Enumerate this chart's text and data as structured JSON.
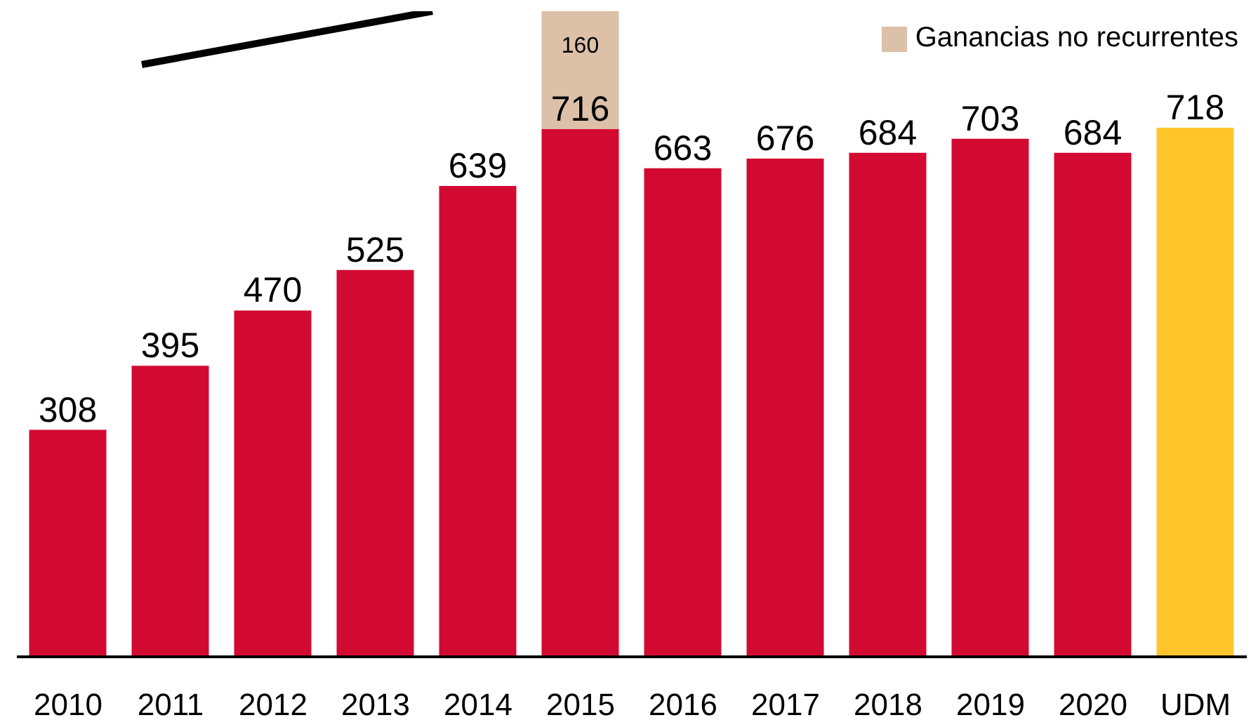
{
  "chart_data": {
    "type": "bar",
    "categories": [
      "2010",
      "2011",
      "2012",
      "2013",
      "2014",
      "2015",
      "2016",
      "2017",
      "2018",
      "2019",
      "2020",
      "UDM"
    ],
    "stacked": true,
    "data_labels": true,
    "legend": "top right",
    "series": [
      {
        "colors": [
          "#d20a32",
          "#d20a32",
          "#d20a32",
          "#d20a32",
          "#d20a32",
          "#d20a32",
          "#d20a32",
          "#d20a32",
          "#d20a32",
          "#d20a32",
          "#d20a32",
          "#ffc52a"
        ],
        "color": "#d20a32",
        "values": [
          308,
          395,
          470,
          525,
          639,
          716,
          663,
          676,
          684,
          703,
          684,
          718
        ]
      },
      {
        "name": "Ganancias no recurrentes",
        "color": "#dcc0a8",
        "values": [
          null,
          null,
          null,
          null,
          null,
          160,
          null,
          null,
          null,
          null,
          null,
          null
        ]
      }
    ]
  }
}
